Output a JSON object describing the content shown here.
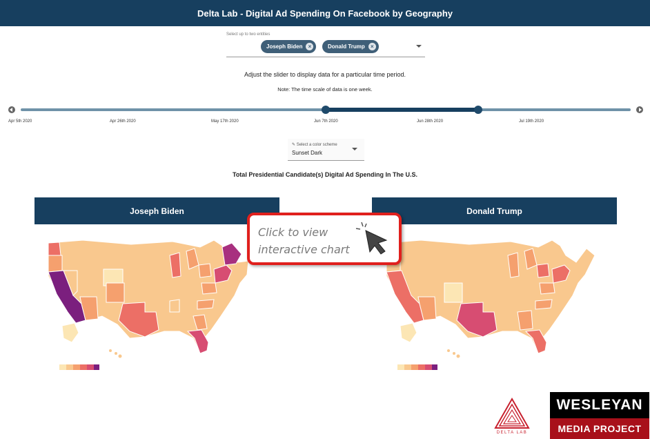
{
  "header": {
    "title": "Delta Lab - Digital Ad Spending On Facebook by Geography"
  },
  "entity_select": {
    "label": "Select up to two entities",
    "chips": [
      "Joseph Biden",
      "Donald Trump"
    ],
    "remove_icon": "×"
  },
  "instructions": {
    "line1": "Adjust the slider to display data for a particular time period.",
    "line2": "Note: The time scale of data is one week."
  },
  "slider": {
    "ticks": [
      "Apr 5th 2020",
      "Apr 26th 2020",
      "May 17th 2020",
      "Jun 7th 2020",
      "Jun 28th 2020",
      "Jul 19th 2020"
    ],
    "selected_range": [
      "Jun 7th 2020",
      "Jul 5th 2020"
    ]
  },
  "color_scheme": {
    "label": "Select a color scheme",
    "value": "Sunset Dark"
  },
  "chart_title": "Total Presidential Candidate(s) Digital Ad Spending In The U.S.",
  "candidates": [
    {
      "name": "Joseph Biden"
    },
    {
      "name": "Donald Trump"
    }
  ],
  "callout": {
    "line1": "Click to view",
    "line2": "interactive chart"
  },
  "logos": {
    "delta": "DELTA LAB",
    "wesleyan_top": "WESLEYAN",
    "wesleyan_bottom": "MEDIA PROJECT"
  },
  "colors": {
    "navy": "#173f5f",
    "scale": [
      "#fce6b4",
      "#f9c88e",
      "#f5a06e",
      "#ec6f66",
      "#d74d72",
      "#a8307f",
      "#7b1f7e"
    ],
    "callout_border": "#e0201d",
    "wesleyan_red": "#a8101a"
  }
}
